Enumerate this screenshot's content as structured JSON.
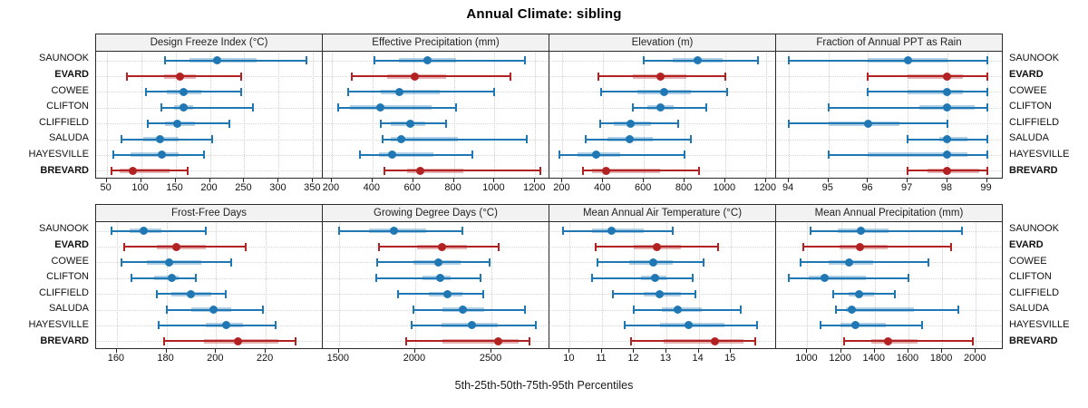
{
  "title": "Annual Climate: sibling",
  "caption": "5th-25th-50th-75th-95th Percentiles",
  "colors": {
    "series": "#1F77B4",
    "series_band": "rgba(31,119,180,0.35)",
    "highlight": "#B22222",
    "highlight_band": "rgba(178,34,34,0.35)",
    "panel_header_bg": "#F2F2F2",
    "panel_border": "#2A2A2A",
    "grid": "#CDCDCD"
  },
  "chart_data": {
    "type": "dotplot",
    "title": "Annual Climate: sibling",
    "xlabel": "5th-25th-50th-75th-95th Percentiles",
    "percentile_labels": [
      "5th",
      "25th",
      "50th",
      "75th",
      "95th"
    ],
    "sites": [
      "SAUNOOK",
      "EVARD",
      "COWEE",
      "CLIFTON",
      "CLIFFIELD",
      "SALUDA",
      "HAYESVILLE",
      "BREVARD"
    ],
    "highlighted_sites": [
      "EVARD",
      "BREVARD"
    ],
    "layout": {
      "rows": 2,
      "cols": 4,
      "grid": "dotted",
      "site_labels": "both-sides",
      "legend": "none"
    },
    "panels": [
      {
        "title": "Design Freeze Index (°C)",
        "domain": [
          36,
          364
        ],
        "ticks": [
          50,
          100,
          150,
          200,
          250,
          300,
          350
        ],
        "values": [
          [
            135,
            170,
            210,
            268,
            340
          ],
          [
            80,
            133,
            157,
            180,
            245
          ],
          [
            107,
            138,
            162,
            188,
            245
          ],
          [
            130,
            148,
            162,
            176,
            262
          ],
          [
            110,
            135,
            152,
            178,
            228
          ],
          [
            72,
            103,
            128,
            155,
            203
          ],
          [
            60,
            85,
            130,
            155,
            192
          ],
          [
            57,
            69,
            88,
            142,
            168
          ]
        ]
      },
      {
        "title": "Effective Precipitation (mm)",
        "domain": [
          160,
          1270
        ],
        "ticks": [
          200,
          400,
          600,
          800,
          1000,
          1200
        ],
        "values": [
          [
            410,
            530,
            670,
            810,
            1150
          ],
          [
            300,
            470,
            610,
            760,
            1080
          ],
          [
            280,
            440,
            530,
            730,
            1000
          ],
          [
            230,
            290,
            440,
            690,
            810
          ],
          [
            440,
            490,
            585,
            660,
            760
          ],
          [
            450,
            490,
            540,
            820,
            1160
          ],
          [
            340,
            430,
            495,
            700,
            890
          ],
          [
            460,
            570,
            635,
            845,
            1225
          ]
        ]
      },
      {
        "title": "Elevation (m)",
        "domain": [
          140,
          1250
        ],
        "ticks": [
          200,
          400,
          600,
          800,
          1000,
          1200
        ],
        "values": [
          [
            600,
            740,
            865,
            985,
            1160
          ],
          [
            375,
            545,
            680,
            810,
            1000
          ],
          [
            390,
            570,
            700,
            830,
            1010
          ],
          [
            545,
            615,
            680,
            745,
            905
          ],
          [
            385,
            450,
            535,
            635,
            770
          ],
          [
            315,
            420,
            530,
            645,
            830
          ],
          [
            185,
            275,
            365,
            485,
            800
          ],
          [
            300,
            345,
            415,
            680,
            870
          ]
        ]
      },
      {
        "title": "Fraction of Annual PPT as Rain",
        "domain": [
          93.7,
          99.4
        ],
        "ticks": [
          94,
          95,
          96,
          97,
          98,
          99
        ],
        "values": [
          [
            94,
            96,
            97,
            98,
            99
          ],
          [
            96,
            97,
            98,
            98.4,
            99
          ],
          [
            96,
            97,
            98,
            98.4,
            99
          ],
          [
            95,
            97.3,
            98,
            98.7,
            99
          ],
          [
            94,
            95,
            96,
            96.8,
            98
          ],
          [
            97,
            97.8,
            98,
            98.5,
            99
          ],
          [
            95,
            96,
            98,
            98.5,
            99
          ],
          [
            97,
            97.5,
            98,
            98.8,
            99
          ]
        ]
      },
      {
        "title": "Frost-Free Days",
        "domain": [
          152,
          243
        ],
        "ticks": [
          160,
          180,
          200,
          220
        ],
        "values": [
          [
            158,
            165,
            171,
            178,
            196
          ],
          [
            163,
            176,
            184,
            196,
            212
          ],
          [
            162,
            172,
            181,
            194,
            206
          ],
          [
            166,
            175,
            182,
            185,
            192
          ],
          [
            176,
            182,
            190,
            198,
            204
          ],
          [
            180,
            190,
            199,
            206,
            219
          ],
          [
            177,
            196,
            204,
            211,
            224
          ],
          [
            179,
            195,
            209,
            225,
            232
          ]
        ]
      },
      {
        "title": "Growing Degree Days (°C)",
        "domain": [
          1400,
          2880
        ],
        "ticks": [
          1500,
          2000,
          2500
        ],
        "values": [
          [
            1500,
            1700,
            1860,
            2070,
            2310
          ],
          [
            1760,
            2010,
            2175,
            2340,
            2550
          ],
          [
            1750,
            1990,
            2150,
            2300,
            2490
          ],
          [
            1745,
            2045,
            2165,
            2230,
            2430
          ],
          [
            1890,
            2090,
            2210,
            2310,
            2445
          ],
          [
            1990,
            2180,
            2310,
            2450,
            2720
          ],
          [
            1975,
            2170,
            2370,
            2540,
            2790
          ],
          [
            1940,
            2180,
            2545,
            2680,
            2750
          ]
        ]
      },
      {
        "title": "Mean Annual Air Temperature (°C)",
        "domain": [
          9.4,
          16.4
        ],
        "ticks": [
          10,
          11,
          12,
          13,
          14,
          15
        ],
        "values": [
          [
            9.8,
            10.7,
            11.3,
            12.3,
            13.2
          ],
          [
            10.8,
            12.0,
            12.7,
            13.45,
            14.6
          ],
          [
            10.85,
            11.85,
            12.6,
            13.2,
            14.15
          ],
          [
            10.7,
            12.2,
            12.65,
            13.0,
            13.8
          ],
          [
            11.35,
            12.3,
            12.8,
            13.45,
            13.9
          ],
          [
            12.0,
            12.85,
            13.35,
            14.1,
            15.3
          ],
          [
            11.7,
            12.8,
            13.7,
            14.8,
            15.8
          ],
          [
            11.9,
            12.9,
            14.5,
            15.4,
            15.75
          ]
        ]
      },
      {
        "title": "Mean Annual Precipitation (mm)",
        "domain": [
          820,
          2160
        ],
        "ticks": [
          1000,
          1200,
          1400,
          1600,
          1800,
          2000
        ],
        "values": [
          [
            1020,
            1180,
            1320,
            1480,
            1920
          ],
          [
            975,
            1190,
            1315,
            1475,
            1855
          ],
          [
            960,
            1125,
            1250,
            1390,
            1720
          ],
          [
            890,
            1010,
            1100,
            1350,
            1600
          ],
          [
            1155,
            1245,
            1305,
            1395,
            1520
          ],
          [
            1170,
            1230,
            1265,
            1630,
            1895
          ],
          [
            1080,
            1195,
            1285,
            1465,
            1680
          ],
          [
            1220,
            1380,
            1480,
            1655,
            1985
          ]
        ]
      }
    ]
  }
}
